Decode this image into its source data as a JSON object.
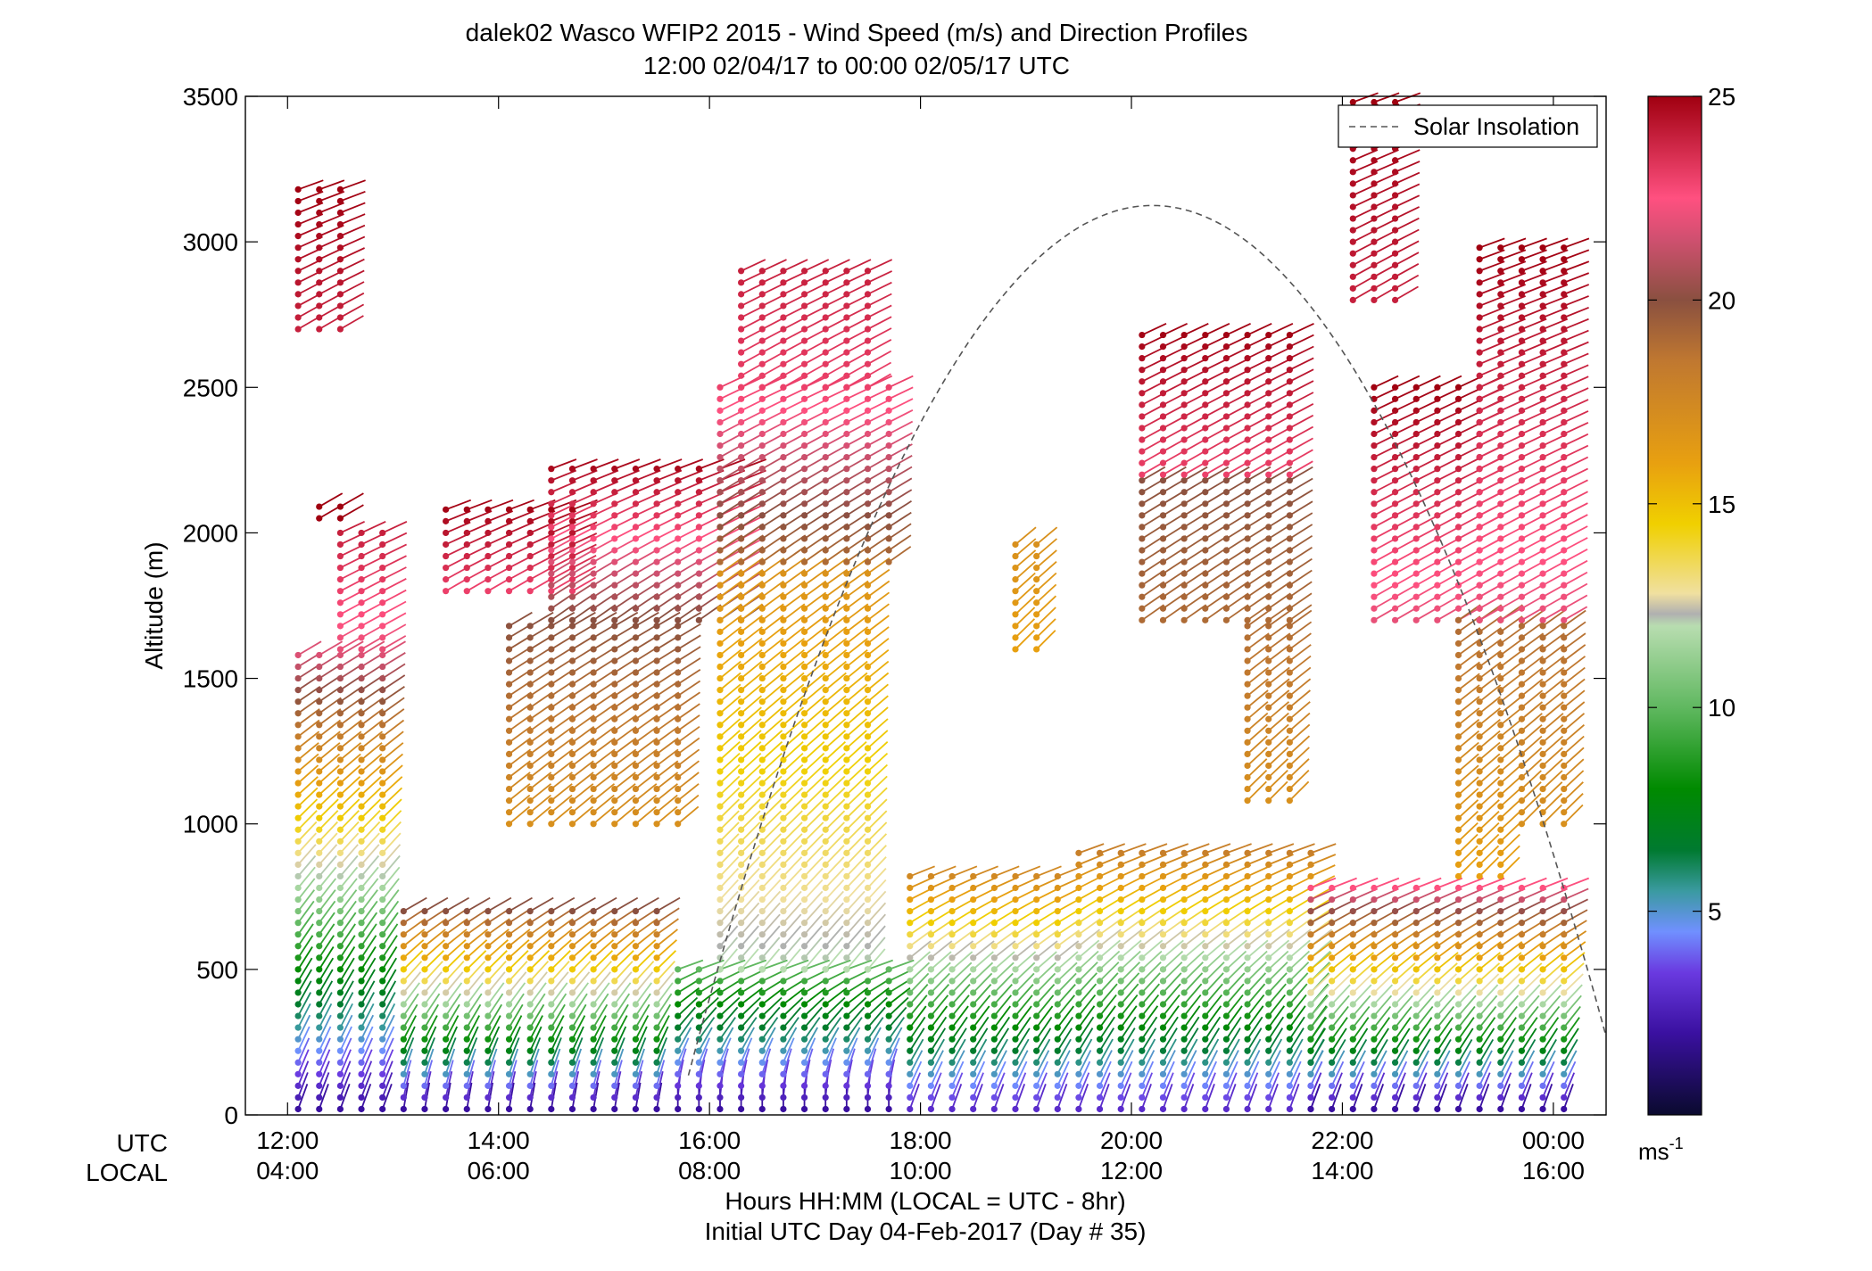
{
  "chart_data": {
    "type": "wind-barb-profile",
    "title": "dalek02 Wasco WFIP2 2015 - Wind Speed (m/s) and Direction Profiles",
    "subtitle": "12:00 02/04/17 to 00:00 02/05/17  UTC",
    "ylabel": "Altitude (m)",
    "xlabel": "Hours HH:MM  (LOCAL = UTC - 8hr)",
    "xlabel2": "Initial UTC Day 04-Feb-2017 (Day # 35)",
    "row_label_utc": "UTC",
    "row_label_local": "LOCAL",
    "ylim": [
      0,
      3500
    ],
    "yticks": [
      0,
      500,
      1000,
      1500,
      2000,
      2500,
      3000,
      3500
    ],
    "xlim_hours": [
      11.6,
      24.5
    ],
    "xticks_utc": [
      "12:00",
      "14:00",
      "16:00",
      "18:00",
      "20:00",
      "22:00",
      "00:00"
    ],
    "xticks_local": [
      "04:00",
      "06:00",
      "08:00",
      "10:00",
      "12:00",
      "14:00",
      "16:00"
    ],
    "xtick_hours": [
      12,
      14,
      16,
      18,
      20,
      22,
      24
    ],
    "colorbar": {
      "min": 0,
      "max": 25,
      "ticks": [
        5,
        10,
        15,
        20,
        25
      ],
      "unit_label": "ms",
      "unit_exp": "-1",
      "stops": [
        {
          "v": 0,
          "c": "#0a0a2e"
        },
        {
          "v": 2,
          "c": "#3a10a0"
        },
        {
          "v": 3.5,
          "c": "#6a3ae0"
        },
        {
          "v": 4.5,
          "c": "#7090ff"
        },
        {
          "v": 5.5,
          "c": "#3a9aa0"
        },
        {
          "v": 6.5,
          "c": "#007a30"
        },
        {
          "v": 8,
          "c": "#008a00"
        },
        {
          "v": 10,
          "c": "#60b860"
        },
        {
          "v": 12,
          "c": "#b8ddb0"
        },
        {
          "v": 12.3,
          "c": "#b0b0b0"
        },
        {
          "v": 12.8,
          "c": "#f0e0a0"
        },
        {
          "v": 14.5,
          "c": "#f0d000"
        },
        {
          "v": 16,
          "c": "#e8a010"
        },
        {
          "v": 18.5,
          "c": "#c07830"
        },
        {
          "v": 20,
          "c": "#8a5040"
        },
        {
          "v": 21.5,
          "c": "#d05070"
        },
        {
          "v": 22.5,
          "c": "#ff5080"
        },
        {
          "v": 25,
          "c": "#a00010"
        }
      ]
    },
    "legend": {
      "label": "Solar Insolation",
      "style": "dashed gray",
      "position": "top-right"
    },
    "solar_insolation": {
      "start_hour": 15.8,
      "peak_hour": 20.2,
      "peak_altitude_m": 3125,
      "end_hour": 24.5,
      "end_altitude_m": 270
    },
    "time_columns_hours": [
      12.1,
      12.3,
      12.5,
      12.7,
      12.9,
      13.1,
      13.3,
      13.5,
      13.7,
      13.9,
      14.1,
      14.3,
      14.5,
      14.7,
      14.9,
      15.1,
      15.3,
      15.5,
      15.7,
      15.9,
      16.1,
      16.3,
      16.5,
      16.7,
      16.9,
      17.1,
      17.3,
      17.5,
      17.7,
      17.9,
      18.1,
      18.3,
      18.5,
      18.7,
      18.9,
      19.1,
      19.3,
      19.5,
      19.7,
      19.9,
      20.1,
      20.3,
      20.5,
      20.7,
      20.9,
      21.1,
      21.3,
      21.5,
      21.7,
      21.9,
      22.1,
      22.3,
      22.5,
      22.7,
      22.9,
      23.1,
      23.3,
      23.5,
      23.7,
      23.9,
      24.1
    ],
    "gate_spacing_m": 40,
    "profile_segments": [
      {
        "x0": 12.1,
        "x1": 12.9,
        "z0": 20,
        "z1": 1600,
        "speed": [
          2,
          22
        ],
        "dir": [
          200,
          240
        ]
      },
      {
        "x0": 12.1,
        "x1": 12.5,
        "z0": 2700,
        "z1": 3180,
        "speed": [
          24,
          25
        ],
        "dir": [
          240,
          250
        ]
      },
      {
        "x0": 12.3,
        "x1": 12.5,
        "z0": 2050,
        "z1": 2090,
        "speed": [
          25,
          25
        ],
        "dir": [
          240,
          240
        ]
      },
      {
        "x0": 12.5,
        "x1": 12.9,
        "z0": 1600,
        "z1": 2000,
        "speed": [
          22,
          24
        ],
        "dir": [
          240,
          245
        ]
      },
      {
        "x0": 13.1,
        "x1": 15.5,
        "z0": 20,
        "z1": 700,
        "speed": [
          2,
          20
        ],
        "dir": [
          190,
          240
        ]
      },
      {
        "x0": 13.5,
        "x1": 14.7,
        "z0": 1800,
        "z1": 2100,
        "speed": [
          23,
          25
        ],
        "dir": [
          240,
          250
        ]
      },
      {
        "x0": 14.1,
        "x1": 15.7,
        "z0": 1000,
        "z1": 1700,
        "speed": [
          17,
          20
        ],
        "dir": [
          230,
          240
        ]
      },
      {
        "x0": 14.5,
        "x1": 16.3,
        "z0": 1700,
        "z1": 2250,
        "speed": [
          20,
          25
        ],
        "dir": [
          235,
          250
        ]
      },
      {
        "x0": 15.7,
        "x1": 17.7,
        "z0": 20,
        "z1": 500,
        "speed": [
          2,
          10
        ],
        "dir": [
          180,
          250
        ]
      },
      {
        "x0": 16.1,
        "x1": 17.5,
        "z0": 500,
        "z1": 1900,
        "speed": [
          12,
          17
        ],
        "dir": [
          220,
          235
        ]
      },
      {
        "x0": 16.1,
        "x1": 17.7,
        "z0": 1900,
        "z1": 2500,
        "speed": [
          19,
          23
        ],
        "dir": [
          235,
          245
        ]
      },
      {
        "x0": 16.3,
        "x1": 17.5,
        "z0": 2500,
        "z1": 2900,
        "speed": [
          23,
          24
        ],
        "dir": [
          240,
          245
        ]
      },
      {
        "x0": 17.9,
        "x1": 19.3,
        "z0": 20,
        "z1": 850,
        "speed": [
          3,
          18
        ],
        "dir": [
          200,
          250
        ]
      },
      {
        "x0": 18.9,
        "x1": 19.1,
        "z0": 1600,
        "z1": 1960,
        "speed": [
          16,
          17
        ],
        "dir": [
          225,
          230
        ]
      },
      {
        "x0": 19.5,
        "x1": 21.7,
        "z0": 20,
        "z1": 900,
        "speed": [
          3,
          18
        ],
        "dir": [
          200,
          250
        ]
      },
      {
        "x0": 20.1,
        "x1": 21.5,
        "z0": 1700,
        "z1": 2200,
        "speed": [
          19,
          20
        ],
        "dir": [
          235,
          240
        ]
      },
      {
        "x0": 20.1,
        "x1": 21.5,
        "z0": 2200,
        "z1": 2700,
        "speed": [
          23,
          25
        ],
        "dir": [
          240,
          245
        ]
      },
      {
        "x0": 21.1,
        "x1": 21.5,
        "z0": 1080,
        "z1": 1700,
        "speed": [
          17,
          19
        ],
        "dir": [
          225,
          235
        ]
      },
      {
        "x0": 21.7,
        "x1": 24.1,
        "z0": 20,
        "z1": 800,
        "speed": [
          2,
          23
        ],
        "dir": [
          200,
          250
        ]
      },
      {
        "x0": 22.1,
        "x1": 22.5,
        "z0": 2800,
        "z1": 3480,
        "speed": [
          24,
          25
        ],
        "dir": [
          240,
          250
        ]
      },
      {
        "x0": 22.3,
        "x1": 23.3,
        "z0": 1700,
        "z1": 2500,
        "speed": [
          22,
          25
        ],
        "dir": [
          240,
          245
        ]
      },
      {
        "x0": 23.1,
        "x1": 23.5,
        "z0": 820,
        "z1": 1700,
        "speed": [
          16,
          19
        ],
        "dir": [
          225,
          235
        ]
      },
      {
        "x0": 23.3,
        "x1": 24.1,
        "z0": 1700,
        "z1": 2980,
        "speed": [
          22,
          25
        ],
        "dir": [
          240,
          250
        ]
      },
      {
        "x0": 23.7,
        "x1": 24.1,
        "z0": 1000,
        "z1": 1700,
        "speed": [
          17,
          19
        ],
        "dir": [
          225,
          235
        ]
      }
    ]
  }
}
